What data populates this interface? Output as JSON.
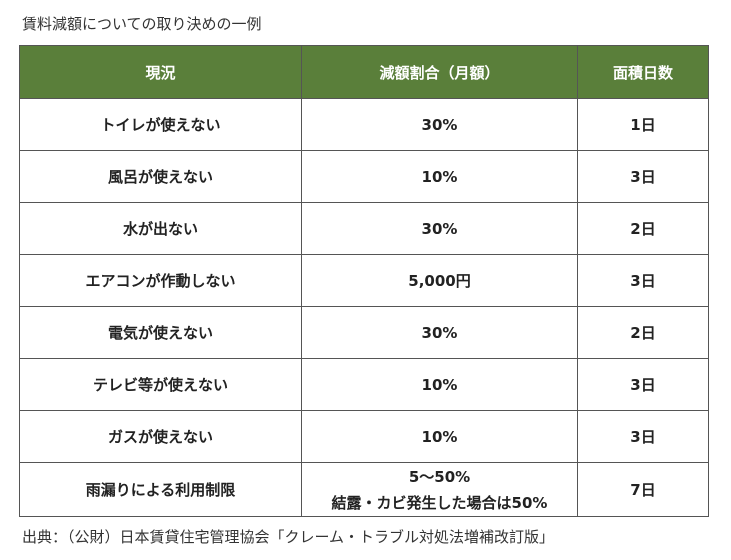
{
  "caption": "賃料減額についての取り決めの一例",
  "table": {
    "headers": [
      "現況",
      "減額割合（月額）",
      "面積日数"
    ],
    "rows": [
      {
        "situation": "トイレが使えない",
        "rate": "30%",
        "days": "1日"
      },
      {
        "situation": "風呂が使えない",
        "rate": "10%",
        "days": "3日"
      },
      {
        "situation": "水が出ない",
        "rate": "30%",
        "days": "2日"
      },
      {
        "situation": "エアコンが作動しない",
        "rate": "5,000円",
        "days": "3日"
      },
      {
        "situation": "電気が使えない",
        "rate": "30%",
        "days": "2日"
      },
      {
        "situation": "テレビ等が使えない",
        "rate": "10%",
        "days": "3日"
      },
      {
        "situation": "ガスが使えない",
        "rate": "10%",
        "days": "3日"
      },
      {
        "situation": "雨漏りによる利用制限",
        "rate_line1": "5～50%",
        "rate_line2": "結露・カビ発生した場合は50%",
        "days": "7日"
      }
    ]
  },
  "source": "出典：（公財）日本賃貸住宅管理協会「クレーム・トラブル対処法増補改訂版」",
  "colors": {
    "header_background": "#5a7f3a",
    "header_text": "#ffffff",
    "border": "#555555"
  }
}
